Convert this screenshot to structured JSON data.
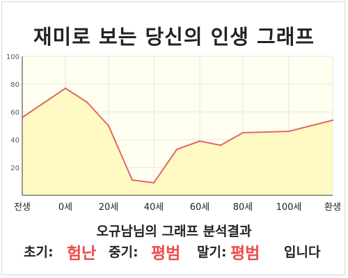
{
  "title": "재미로 보는 당신의 인생 그래프",
  "subtitle": "오규남님의 그래프 분석결과",
  "result": {
    "early_label": "초기:",
    "early_value": "험난",
    "mid_label": "중기:",
    "mid_value": "평범",
    "late_label": "말기:",
    "late_value": "평범",
    "ending": "입니다"
  },
  "colors": {
    "line": "#e06666",
    "fill": "#fff9c4",
    "plot_background": "#fffff0",
    "highlight_text": "#ee4b4b",
    "grid": "#e4e4e4"
  },
  "chart_data": {
    "type": "area",
    "x_ticks": [
      "전생",
      "0세",
      "20세",
      "40세",
      "60세",
      "80세",
      "100세",
      "환생"
    ],
    "y_ticks": [
      "20",
      "40",
      "60",
      "80",
      "100"
    ],
    "ylim": [
      0,
      100
    ],
    "grid": true,
    "series": [
      {
        "points": [
          {
            "x": "전생",
            "y": 56
          },
          {
            "x": "0세",
            "y": 77
          },
          {
            "x": "10세",
            "y": 67
          },
          {
            "x": "20세",
            "y": 50
          },
          {
            "x": "30세",
            "y": 11
          },
          {
            "x": "40세",
            "y": 9
          },
          {
            "x": "50세",
            "y": 33
          },
          {
            "x": "60세",
            "y": 39
          },
          {
            "x": "70세",
            "y": 36
          },
          {
            "x": "80세",
            "y": 45
          },
          {
            "x": "90세",
            "y": 45.5
          },
          {
            "x": "100세",
            "y": 46
          },
          {
            "x": "환생",
            "y": 54
          }
        ]
      }
    ]
  }
}
